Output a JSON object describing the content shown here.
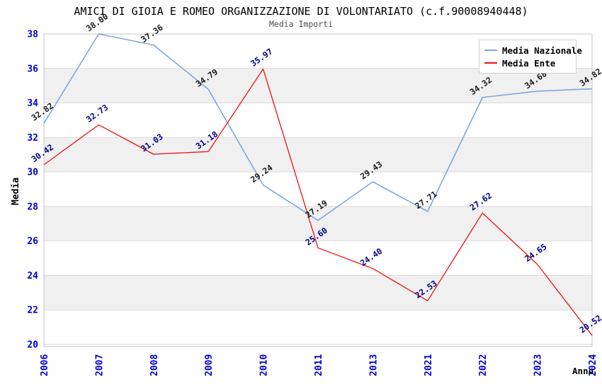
{
  "title": "AMICI DI GIOIA E ROMEO ORGANIZZAZIONE DI VOLONTARIATO (c.f.90008940448)",
  "subtitle": "Media Importi",
  "axes": {
    "x_title": "Anno",
    "y_title": "Media"
  },
  "legend": [
    {
      "label": "Media Nazionale",
      "color": "#7CA7E0"
    },
    {
      "label": "Media Ente",
      "color": "#EE1111"
    }
  ],
  "colors": {
    "tick_label": "#0000CD",
    "band": "#F0F0F0",
    "gridline": "#DBDBDB",
    "frame": "#C4C4C4",
    "nazionale_line": "#7CA7E0",
    "nazionale_label": "#1A1A1A",
    "ente_line": "#EE1111",
    "ente_label": "#00008B"
  },
  "chart_data": {
    "type": "line",
    "title": "AMICI DI GIOIA E ROMEO ORGANIZZAZIONE DI VOLONTARIATO (c.f.90008940448)",
    "subtitle": "Media Importi",
    "xlabel": "Anno",
    "ylabel": "Media",
    "categories": [
      "2006",
      "2007",
      "2008",
      "2009",
      "2010",
      "2011",
      "2013",
      "2021",
      "2022",
      "2023",
      "2024"
    ],
    "series": [
      {
        "name": "Media Nazionale",
        "color": "#7CA7E0",
        "label_color": "#1A1A1A",
        "values": [
          32.82,
          38.0,
          37.36,
          34.79,
          29.24,
          27.19,
          29.43,
          27.71,
          34.32,
          34.68,
          34.82
        ]
      },
      {
        "name": "Media Ente",
        "color": "#EE1111",
        "label_color": "#00008B",
        "values": [
          30.42,
          32.73,
          31.03,
          31.18,
          35.97,
          25.6,
          24.4,
          22.53,
          27.62,
          24.65,
          20.52
        ]
      }
    ],
    "ylim": [
      20,
      38
    ],
    "y_ticks": [
      20,
      22,
      24,
      26,
      28,
      30,
      32,
      34,
      36,
      38
    ],
    "shaded_bands": [
      [
        22,
        24
      ],
      [
        26,
        28
      ],
      [
        30,
        32
      ],
      [
        34,
        36
      ]
    ],
    "grid": "horizontal",
    "legend_position": "top-right",
    "data_labels": "all points, 2 decimals, rotated"
  }
}
